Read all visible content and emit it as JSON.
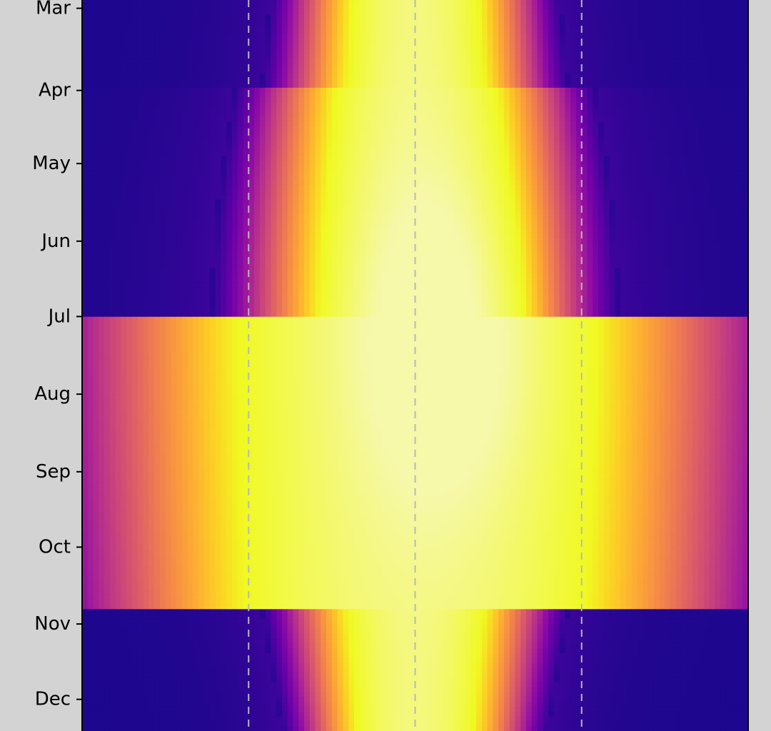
{
  "chart_data": {
    "type": "heatmap",
    "colormap": "plasma",
    "background": "#d3d3d3",
    "y_ticks": [
      "Mar",
      "Apr",
      "May",
      "Jun",
      "Jul",
      "Aug",
      "Sep",
      "Oct",
      "Nov",
      "Dec"
    ],
    "y_tick_values": [
      2.91,
      4.0,
      4.97,
      6.0,
      7.0,
      8.03,
      9.06,
      10.06,
      11.08,
      12.08
    ],
    "ylim": [
      2.8,
      12.5
    ],
    "xlim": [
      0,
      24
    ],
    "x_guides": [
      6,
      12,
      18
    ],
    "grid": false,
    "colorbar": false,
    "bands": [
      {
        "from": 2.8,
        "to": 3.95,
        "width_top": 5.25,
        "width_bottom": 5.55
      },
      {
        "from": 3.95,
        "to": 10.9,
        "width_top": 6.5,
        "width_mid": 7.35,
        "width_peak_month": 7.0,
        "width_bottom": 6.8
      },
      {
        "from": 10.9,
        "to": 12.5,
        "width_top": 5.55,
        "width_bottom": 4.8
      }
    ]
  }
}
